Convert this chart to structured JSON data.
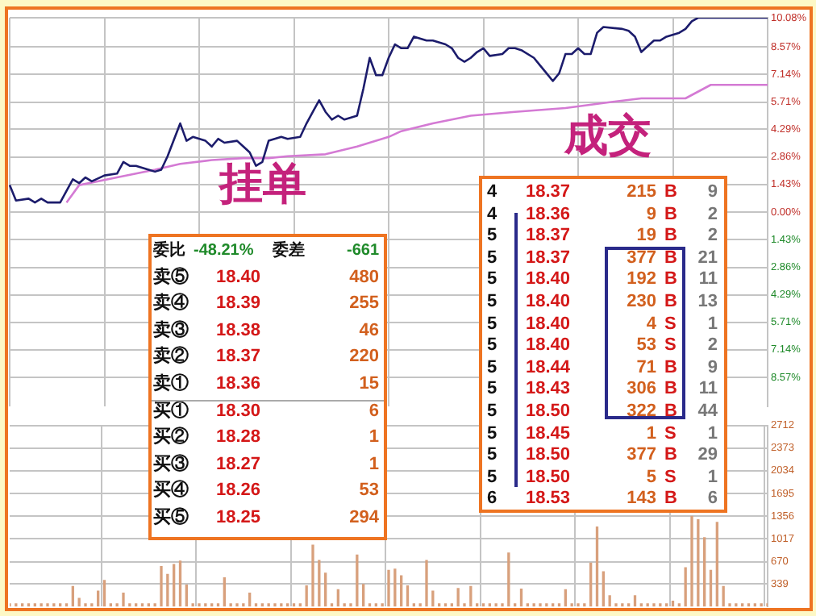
{
  "chart_data": [
    {
      "type": "line",
      "categories": [
        null,
        null,
        null,
        null,
        null,
        null,
        null,
        null,
        null,
        null,
        null,
        null,
        null,
        null,
        null,
        null,
        null,
        null,
        null,
        null,
        null,
        null,
        null,
        null,
        null,
        null,
        null,
        null,
        null,
        null,
        null,
        null,
        null,
        null,
        null,
        null,
        null,
        null,
        null,
        null,
        null,
        null,
        null,
        null,
        null,
        null,
        null,
        null,
        null,
        null,
        null,
        null,
        null,
        null,
        null,
        null,
        null,
        null,
        null,
        null,
        null,
        null,
        null,
        null,
        null,
        null,
        null,
        null,
        null,
        null,
        null,
        null,
        null,
        null,
        null,
        null,
        null,
        null,
        null,
        null,
        null,
        null,
        null,
        null,
        null,
        null,
        null,
        null,
        null,
        null,
        null,
        null,
        null,
        null,
        null,
        null,
        null,
        null,
        null,
        null,
        null,
        null,
        null,
        null,
        null,
        null,
        null,
        null,
        null,
        null,
        null,
        null,
        null,
        null,
        null,
        null,
        null,
        null,
        null,
        null,
        null
      ],
      "ylim": [
        -10.08,
        10.08
      ],
      "yticks": [
        {
          "value": 10.08,
          "label": "10.08%"
        },
        {
          "value": 8.57,
          "label": "8.57%"
        },
        {
          "value": 7.14,
          "label": "7.14%"
        },
        {
          "value": 5.71,
          "label": "5.71%"
        },
        {
          "value": 4.29,
          "label": "4.29%"
        },
        {
          "value": 2.86,
          "label": "2.86%"
        },
        {
          "value": 1.43,
          "label": "1.43%"
        },
        {
          "value": 0,
          "label": "0.00%"
        },
        {
          "value": -1.43,
          "label": "1.43%"
        },
        {
          "value": -2.86,
          "label": "2.86%"
        },
        {
          "value": -4.29,
          "label": "4.29%"
        },
        {
          "value": -5.71,
          "label": "5.71%"
        },
        {
          "value": -7.14,
          "label": "7.14%"
        },
        {
          "value": -8.57,
          "label": "8.57%"
        }
      ],
      "tick_labels": "y",
      "grid": true,
      "legend": false,
      "marker": "none",
      "series": [
        {
          "color": "#1c1c6c",
          "values": [
            1.4,
            0.6,
            null,
            0.7,
            0.5,
            0.7,
            0.5,
            null,
            0.5,
            null,
            1.7,
            1.5,
            1.8,
            1.6,
            null,
            1.9,
            null,
            2.0,
            2.6,
            2.4,
            2.4,
            null,
            2.2,
            2.1,
            2.2,
            2.9,
            null,
            4.6,
            3.7,
            3.9,
            null,
            3.7,
            3.4,
            3.8,
            3.6,
            null,
            3.7,
            3.4,
            3.1,
            2.4,
            2.6,
            3.7,
            null,
            3.9,
            3.8,
            null,
            3.9,
            4.6,
            5.2,
            5.8,
            5.2,
            4.8,
            5.0,
            4.8,
            null,
            5.0,
            6.4,
            8.0,
            7.1,
            7.1,
            8.0,
            8.7,
            8.5,
            8.5,
            9.1,
            null,
            8.9,
            8.9,
            null,
            8.7,
            8.5,
            8.0,
            7.8,
            8.0,
            8.3,
            8.5,
            8.1,
            null,
            8.2,
            8.5,
            8.5,
            8.4,
            null,
            8.0,
            7.6,
            7.2,
            6.8,
            7.2,
            8.2,
            8.2,
            8.5,
            8.2,
            8.2,
            9.3,
            9.6,
            null,
            null,
            9.5,
            9.4,
            9.1,
            8.3,
            null,
            8.9,
            8.9,
            9.1,
            null,
            9.3,
            9.5,
            9.9,
            10.08,
            null,
            null,
            null,
            null,
            null,
            null,
            null,
            null,
            null,
            null,
            10.08
          ]
        },
        {
          "color": "#d47ad4",
          "values": [
            null,
            null,
            null,
            null,
            null,
            null,
            null,
            null,
            null,
            0.5,
            null,
            1.4,
            null,
            null,
            null,
            null,
            null,
            1.8,
            null,
            null,
            null,
            null,
            null,
            2.2,
            null,
            null,
            null,
            2.5,
            null,
            null,
            null,
            null,
            2.7,
            null,
            null,
            null,
            null,
            2.8,
            null,
            null,
            null,
            2.8,
            null,
            null,
            2.9,
            null,
            null,
            null,
            null,
            null,
            3.0,
            null,
            null,
            null,
            null,
            3.4,
            null,
            null,
            null,
            null,
            3.9,
            null,
            4.2,
            null,
            null,
            null,
            null,
            4.6,
            null,
            null,
            null,
            null,
            null,
            5.0,
            null,
            null,
            null,
            null,
            null,
            null,
            5.2,
            null,
            null,
            null,
            null,
            null,
            null,
            null,
            5.4,
            null,
            null,
            null,
            null,
            null,
            null,
            5.7,
            null,
            null,
            null,
            null,
            5.9,
            null,
            null,
            null,
            null,
            null,
            null,
            5.9,
            null,
            null,
            null,
            6.6,
            null,
            null,
            null,
            null,
            null,
            null,
            null,
            null,
            6.6
          ]
        }
      ],
      "annotations": [
        "挂单",
        "成交",
        "委比 -48.21% 委差 -661",
        "卖⑤ 18.40 480",
        "卖④ 18.39 255",
        "卖③ 18.38 46",
        "卖② 18.37 220",
        "卖① 18.36 15",
        "买① 18.30 6",
        "买② 18.28 1",
        "买③ 18.27 1",
        "买④ 18.26 53",
        "买⑤ 18.25 294",
        "4 18.37 215 B 9",
        "4 18.36 9 B 2",
        "5 18.37 19 B 2",
        "5 18.37 377 B 21",
        "5 18.40 192 B 11",
        "5 18.40 230 B 13",
        "5 18.40 4 S 1",
        "5 18.40 53 S 2",
        "5 18.44 71 B 9",
        "5 18.43 306 B 11",
        "5 18.50 322 B 44",
        "5 18.45 1 S 1",
        "5 18.50 377 B 29",
        "5 18.50 5 S 1",
        "6 18.53 143 B 6"
      ]
    },
    {
      "type": "bar",
      "color": "#d8a07c",
      "categories": [
        null,
        null,
        null,
        null,
        null,
        null,
        null,
        null,
        null,
        null,
        null,
        null,
        null,
        null,
        null,
        null,
        null,
        null,
        null,
        null,
        null,
        null,
        null,
        null,
        null,
        null,
        null,
        null,
        null,
        null,
        null,
        null,
        null,
        null,
        null,
        null,
        null,
        null,
        null,
        null,
        null,
        null,
        null,
        null,
        null,
        null,
        null,
        null,
        null,
        null,
        null,
        null,
        null,
        null,
        null,
        null,
        null,
        null,
        null,
        null,
        null,
        null,
        null,
        null,
        null,
        null,
        null,
        null,
        null,
        null,
        null,
        null,
        null,
        null,
        null,
        null,
        null,
        null,
        null,
        null,
        null,
        null,
        null,
        null,
        null,
        null,
        null,
        null,
        null,
        null,
        null,
        null,
        null,
        null,
        null,
        null,
        null,
        null,
        null,
        null,
        null,
        null,
        null,
        null,
        null,
        null,
        null,
        null,
        null,
        null,
        null,
        null,
        null,
        null,
        null,
        null,
        null,
        null,
        null,
        null,
        null
      ],
      "ylim": [
        0,
        2712
      ],
      "yticks": [
        339,
        670,
        1017,
        1356,
        1695,
        2034,
        2373,
        2712
      ],
      "tick_labels": "y",
      "grid": true,
      "legend": false,
      "values": [
        40,
        40,
        40,
        40,
        40,
        40,
        40,
        40,
        40,
        40,
        300,
        120,
        40,
        40,
        230,
        390,
        40,
        40,
        200,
        40,
        40,
        40,
        40,
        40,
        600,
        480,
        630,
        680,
        320,
        40,
        40,
        40,
        40,
        40,
        430,
        40,
        40,
        40,
        200,
        40,
        40,
        40,
        40,
        40,
        40,
        40,
        40,
        310,
        920,
        690,
        500,
        40,
        250,
        40,
        40,
        770,
        330,
        40,
        40,
        40,
        540,
        560,
        460,
        310,
        40,
        40,
        690,
        230,
        40,
        40,
        40,
        270,
        40,
        300,
        40,
        40,
        40,
        40,
        40,
        800,
        40,
        260,
        40,
        40,
        40,
        40,
        40,
        40,
        250,
        40,
        40,
        40,
        650,
        1190,
        520,
        160,
        40,
        40,
        40,
        160,
        40,
        40,
        40,
        40,
        40,
        80,
        40,
        580,
        1350,
        1300,
        1030,
        540,
        1260,
        300,
        40,
        40,
        40,
        40,
        40,
        40,
        40
      ]
    }
  ]
}
